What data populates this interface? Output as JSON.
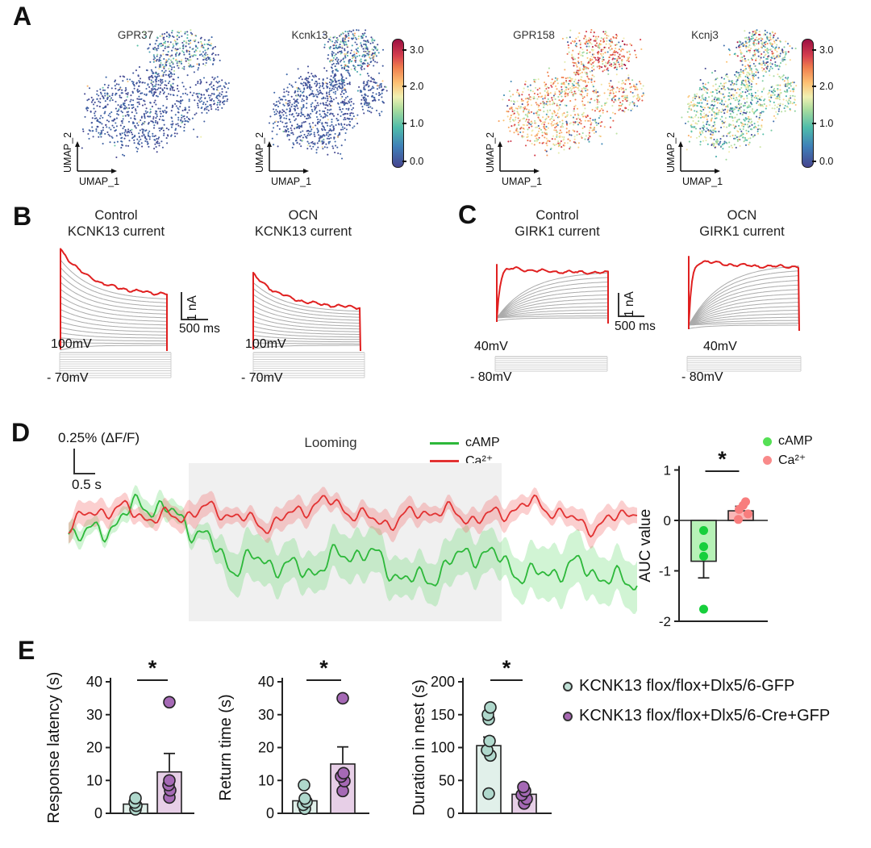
{
  "panels": {
    "A": {
      "label": "A",
      "plots": [
        "GPR37",
        "Kcnk13",
        "GPR158",
        "Kcnj3"
      ],
      "axis": {
        "x": "UMAP_1",
        "y": "UMAP_2"
      },
      "colorbar": {
        "ticks": [
          "3.0",
          "2.0",
          "1.0",
          "0.0"
        ]
      }
    },
    "B": {
      "label": "B",
      "plots": [
        {
          "line1": "Control",
          "line2": "KCNK13 current"
        },
        {
          "line1": "OCN",
          "line2": "KCNK13 current"
        }
      ],
      "scalebar": {
        "v": "1 nA",
        "h": "500 ms"
      },
      "protocol": {
        "top": "100mV",
        "bottom": "- 70mV"
      }
    },
    "C": {
      "label": "C",
      "plots": [
        {
          "line1": "Control",
          "line2": "GIRK1 current"
        },
        {
          "line1": "OCN",
          "line2": "GIRK1 current"
        }
      ],
      "scalebar": {
        "v": "1 nA",
        "h": "500 ms"
      },
      "protocol": {
        "top": "40mV",
        "bottom": "- 80mV"
      }
    },
    "D": {
      "label": "D",
      "scalebar": {
        "v": "0.25% (ΔF/F)",
        "h": "0.5 s"
      },
      "stimulus": "Looming",
      "trace_legend": [
        {
          "label": "cAMP",
          "color": "#2db83a"
        },
        {
          "label": "Ca²⁺",
          "color": "#e23232"
        }
      ],
      "dot_legend": [
        {
          "label": "cAMP",
          "color": "#55e055"
        },
        {
          "label": "Ca²⁺",
          "color": "#f98a8a"
        }
      ]
    },
    "E": {
      "label": "E",
      "legend": [
        {
          "label": "KCNK13 flox/flox+Dlx5/6-GFP",
          "fill": "#bfe0d6"
        },
        {
          "label": "KCNK13 flox/flox+Dlx5/6-Cre+GFP",
          "fill": "#a767b2"
        }
      ]
    }
  },
  "colormap": [
    [
      0,
      "#46458f"
    ],
    [
      0.5,
      "#3f7fb8"
    ],
    [
      1,
      "#4fbcaa"
    ],
    [
      1.45,
      "#a9dc9e"
    ],
    [
      1.75,
      "#f0f0b2"
    ],
    [
      2.1,
      "#fdc173"
    ],
    [
      2.5,
      "#ef7e4e"
    ],
    [
      2.8,
      "#d6404e"
    ],
    [
      3.2,
      "#9c0e42"
    ]
  ],
  "colorbar_range": [
    0,
    3.2
  ],
  "chart_data": [
    {
      "id": "umap-gpr37",
      "type": "umap_scatter",
      "title": "GPR37",
      "expression_level": "low",
      "n_points": 1150,
      "xlabel": "UMAP_1",
      "ylabel": "UMAP_2"
    },
    {
      "id": "umap-kcnk13",
      "type": "umap_scatter",
      "title": "Kcnk13",
      "expression_level": "low",
      "n_points": 1150,
      "xlabel": "UMAP_1",
      "ylabel": "UMAP_2"
    },
    {
      "id": "umap-gpr158",
      "type": "umap_scatter",
      "title": "GPR158",
      "expression_level": "high",
      "n_points": 1150,
      "xlabel": "UMAP_1",
      "ylabel": "UMAP_2"
    },
    {
      "id": "umap-kcnj3",
      "type": "umap_scatter",
      "title": "Kcnj3",
      "expression_level": "mixed",
      "n_points": 1150,
      "xlabel": "UMAP_1",
      "ylabel": "UMAP_2"
    },
    {
      "id": "ephys-b1",
      "type": "current_traces",
      "condition": "Control",
      "current": "KCNK13",
      "shape": "decay",
      "n_traces": 15,
      "relative_amplitude": 1.0,
      "color_top": "#e02020",
      "color_family": "#ababab",
      "scale_v": "1 nA",
      "scale_h": "500 ms"
    },
    {
      "id": "ephys-b2",
      "type": "current_traces",
      "condition": "OCN",
      "current": "KCNK13",
      "shape": "decay",
      "n_traces": 14,
      "relative_amplitude": 0.72,
      "color_top": "#e02020",
      "color_family": "#ababab"
    },
    {
      "id": "ephys-c1",
      "type": "current_traces",
      "condition": "Control",
      "current": "GIRK1",
      "shape": "girk",
      "n_traces": 13,
      "relative_amplitude": 0.8,
      "color_top": "#e02020",
      "color_family": "#ababab",
      "scale_v": "1 nA",
      "scale_h": "500 ms"
    },
    {
      "id": "ephys-c2",
      "type": "current_traces",
      "condition": "OCN",
      "current": "GIRK1",
      "shape": "girk",
      "n_traces": 16,
      "relative_amplitude": 0.95,
      "color_top": "#e02020",
      "color_family": "#ababab"
    },
    {
      "id": "proto-b1",
      "type": "voltage_protocol",
      "top": "100mV",
      "bottom": "- 70mV",
      "n_steps": 12
    },
    {
      "id": "proto-b2",
      "type": "voltage_protocol",
      "top": "100mV",
      "bottom": "- 70mV",
      "n_steps": 12
    },
    {
      "id": "proto-c1",
      "type": "voltage_protocol",
      "top": "40mV",
      "bottom": "- 80mV",
      "n_steps": 8
    },
    {
      "id": "proto-c2",
      "type": "voltage_protocol",
      "top": "40mV",
      "bottom": "- 80mV",
      "n_steps": 8
    },
    {
      "id": "loom",
      "type": "line_traces",
      "window_label": "Looming",
      "scalebar": {
        "v": "0.25% (ΔF/F)",
        "h": "0.5 s"
      },
      "series": [
        {
          "name": "cAMP",
          "color": "#2db83a",
          "band": "rgba(90,215,100,0.28)",
          "loom_shift": 55,
          "noise": 22
        },
        {
          "name": "Ca²⁺",
          "color": "#e23232",
          "band": "rgba(242,110,110,0.33)",
          "loom_shift": -2,
          "noise": 16
        }
      ]
    },
    {
      "id": "auc",
      "type": "bar",
      "ylabel": "AUC value",
      "yticks": [
        1,
        0,
        -1,
        -2
      ],
      "baseline": -2,
      "zero_line": true,
      "sig": "*",
      "groups": [
        {
          "label": "cAMP",
          "value": -0.81,
          "err": 0.33,
          "points": [
            -0.2,
            -0.52,
            -0.71,
            -1.76
          ],
          "fill": "#b7f2b7",
          "dot": "#17cf3c",
          "style": "solid"
        },
        {
          "label": "Ca²⁺",
          "value": 0.19,
          "err": 0.09,
          "points": [
            0.02,
            0.13,
            0.22,
            0.3,
            0.37
          ],
          "fill": "#f9b6b6",
          "dot": "#f87d7d",
          "style": "solid"
        }
      ]
    },
    {
      "id": "e1",
      "type": "bar",
      "ylabel": "Response latency (s)",
      "yticks": [
        0,
        10,
        20,
        30,
        40
      ],
      "baseline": 0,
      "sig": "*",
      "groups": [
        {
          "label": "KCNK13 flox/flox+Dlx5/6-GFP",
          "value": 2.8,
          "err": 0,
          "points": [
            1.2,
            2.3,
            3.3,
            4.6
          ],
          "fill": "#e1f0ea",
          "dot": "#afd8cc",
          "style": "ring"
        },
        {
          "label": "KCNK13 flox/flox+Dlx5/6-Cre+GFP",
          "value": 12.6,
          "err": 5.6,
          "points": [
            4.8,
            7,
            8.6,
            10,
            33.8
          ],
          "fill": "#e7cfe7",
          "dot": "#a569b5",
          "style": "ring"
        }
      ]
    },
    {
      "id": "e2",
      "type": "bar",
      "ylabel": "Return time (s)",
      "yticks": [
        0,
        10,
        20,
        30,
        40
      ],
      "baseline": 0,
      "sig": "*",
      "groups": [
        {
          "label": "KCNK13 flox/flox+Dlx5/6-GFP",
          "value": 3.8,
          "err": 0,
          "points": [
            1.4,
            2.6,
            3.5,
            4.5,
            8.6
          ],
          "fill": "#e1f0ea",
          "dot": "#afd8cc",
          "style": "ring"
        },
        {
          "label": "KCNK13 flox/flox+Dlx5/6-Cre+GFP",
          "value": 15,
          "err": 5.2,
          "points": [
            6.8,
            9.8,
            11.2,
            12.2,
            35
          ],
          "fill": "#e7cfe7",
          "dot": "#a569b5",
          "style": "ring"
        }
      ]
    },
    {
      "id": "e3",
      "type": "bar",
      "ylabel": "Duration in nest (s)",
      "yticks": [
        0,
        50,
        100,
        150,
        200
      ],
      "baseline": 0,
      "sig": "*",
      "groups": [
        {
          "label": "KCNK13 flox/flox+Dlx5/6-GFP",
          "value": 103,
          "err": 13,
          "points": [
            30,
            88,
            96,
            110,
            143,
            150,
            161
          ],
          "fill": "#e1f0ea",
          "dot": "#afd8cc",
          "style": "ring"
        },
        {
          "label": "KCNK13 flox/flox+Dlx5/6-Cre+GFP",
          "value": 29,
          "err": 5,
          "points": [
            15,
            22,
            28,
            34,
            40
          ],
          "fill": "#e7cfe7",
          "dot": "#a569b5",
          "style": "ring"
        }
      ]
    }
  ]
}
